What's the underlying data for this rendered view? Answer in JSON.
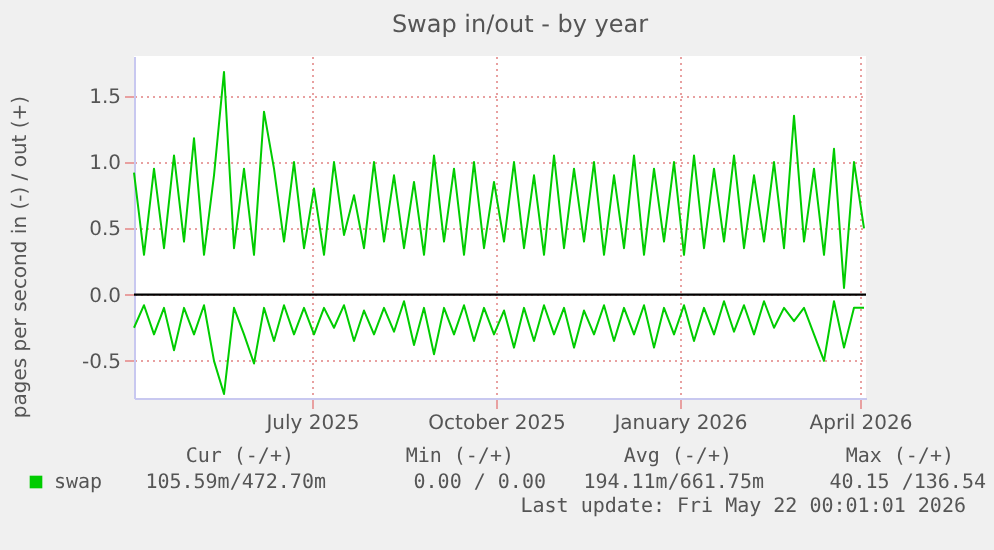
{
  "chart_data": {
    "type": "line",
    "title": "Swap in/out - by year",
    "ylabel": "pages per second in (-) / out (+)",
    "x": [
      "2025-04-03",
      "2025-04-08",
      "2025-04-13",
      "2025-04-18",
      "2025-04-23",
      "2025-04-28",
      "2025-05-03",
      "2025-05-08",
      "2025-05-13",
      "2025-05-18",
      "2025-05-23",
      "2025-05-28",
      "2025-06-02",
      "2025-06-07",
      "2025-06-12",
      "2025-06-17",
      "2025-06-22",
      "2025-06-27",
      "2025-07-02",
      "2025-07-07",
      "2025-07-12",
      "2025-07-17",
      "2025-07-22",
      "2025-07-27",
      "2025-08-01",
      "2025-08-06",
      "2025-08-11",
      "2025-08-16",
      "2025-08-21",
      "2025-08-26",
      "2025-08-31",
      "2025-09-05",
      "2025-09-10",
      "2025-09-15",
      "2025-09-20",
      "2025-09-25",
      "2025-09-30",
      "2025-10-05",
      "2025-10-10",
      "2025-10-15",
      "2025-10-20",
      "2025-10-25",
      "2025-10-30",
      "2025-11-04",
      "2025-11-09",
      "2025-11-14",
      "2025-11-19",
      "2025-11-24",
      "2025-11-29",
      "2025-12-04",
      "2025-12-09",
      "2025-12-14",
      "2025-12-19",
      "2025-12-24",
      "2025-12-29",
      "2026-01-03",
      "2026-01-08",
      "2026-01-13",
      "2026-01-18",
      "2026-01-23",
      "2026-01-28",
      "2026-02-02",
      "2026-02-07",
      "2026-02-12",
      "2026-02-17",
      "2026-02-22",
      "2026-02-27",
      "2026-03-04",
      "2026-03-09",
      "2026-03-14",
      "2026-03-19",
      "2026-03-24",
      "2026-03-29",
      "2026-04-03"
    ],
    "series": [
      {
        "name": "swap",
        "color": "#00cc00",
        "values": [
          0.92,
          0.3,
          0.95,
          0.35,
          1.05,
          0.4,
          1.18,
          0.3,
          0.9,
          1.68,
          0.35,
          0.95,
          0.3,
          1.38,
          0.95,
          0.4,
          1.0,
          0.35,
          0.8,
          0.3,
          1.0,
          0.45,
          0.75,
          0.35,
          1.0,
          0.4,
          0.9,
          0.35,
          0.85,
          0.3,
          1.05,
          0.4,
          0.95,
          0.3,
          1.0,
          0.35,
          0.85,
          0.4,
          1.0,
          0.35,
          0.9,
          0.3,
          1.05,
          0.35,
          0.95,
          0.4,
          1.0,
          0.3,
          0.9,
          0.35,
          1.05,
          0.3,
          0.95,
          0.4,
          1.0,
          0.3,
          1.05,
          0.35,
          0.95,
          0.4,
          1.05,
          0.35,
          0.9,
          0.4,
          1.0,
          0.35,
          1.35,
          0.4,
          0.95,
          0.3,
          1.1,
          0.05,
          1.0,
          0.5
        ]
      },
      {
        "color": "#00cc00",
        "values": [
          -0.25,
          -0.08,
          -0.3,
          -0.1,
          -0.42,
          -0.1,
          -0.3,
          -0.08,
          -0.5,
          -0.75,
          -0.1,
          -0.3,
          -0.52,
          -0.1,
          -0.35,
          -0.08,
          -0.3,
          -0.1,
          -0.3,
          -0.1,
          -0.25,
          -0.08,
          -0.35,
          -0.12,
          -0.3,
          -0.1,
          -0.28,
          -0.05,
          -0.38,
          -0.1,
          -0.45,
          -0.1,
          -0.3,
          -0.08,
          -0.35,
          -0.1,
          -0.3,
          -0.12,
          -0.4,
          -0.1,
          -0.35,
          -0.08,
          -0.3,
          -0.1,
          -0.4,
          -0.12,
          -0.3,
          -0.08,
          -0.35,
          -0.1,
          -0.3,
          -0.08,
          -0.4,
          -0.1,
          -0.3,
          -0.08,
          -0.35,
          -0.1,
          -0.3,
          -0.05,
          -0.28,
          -0.08,
          -0.3,
          -0.05,
          -0.25,
          -0.1,
          -0.2,
          -0.1,
          -0.3,
          -0.5,
          -0.05,
          -0.4,
          -0.1,
          -0.1
        ]
      }
    ],
    "xlim": [
      "2025-04-03",
      "2026-04-04"
    ],
    "xticks": [
      {
        "value": "2025-07-01",
        "label": "July 2025"
      },
      {
        "value": "2025-10-01",
        "label": "October 2025"
      },
      {
        "value": "2026-01-01",
        "label": "January 2026"
      },
      {
        "value": "2026-04-01",
        "label": "April 2026"
      }
    ],
    "ylim": [
      -0.78,
      1.8
    ],
    "yticks": [
      {
        "value": -0.5,
        "label": "-0.5"
      },
      {
        "value": 0,
        "label": "0.0"
      },
      {
        "value": 0.5,
        "label": "0.5"
      },
      {
        "value": 1,
        "label": "1.0"
      },
      {
        "value": 1.5,
        "label": "1.5"
      }
    ],
    "ref_lines": [
      {
        "axis": "y",
        "value": 0,
        "color": "#000000"
      }
    ],
    "grid": true,
    "legend": "bottom",
    "annotations": [
      "Cur (-/+)",
      "Min (-/+)",
      "Avg (-/+)",
      "Max (-/+)",
      "105.59m/472.70m",
      "0.00 /   0.00",
      "194.11m/661.75m",
      "40.15 /136.54",
      "Last update: Fri May 22 00:01:01 2026"
    ]
  }
}
